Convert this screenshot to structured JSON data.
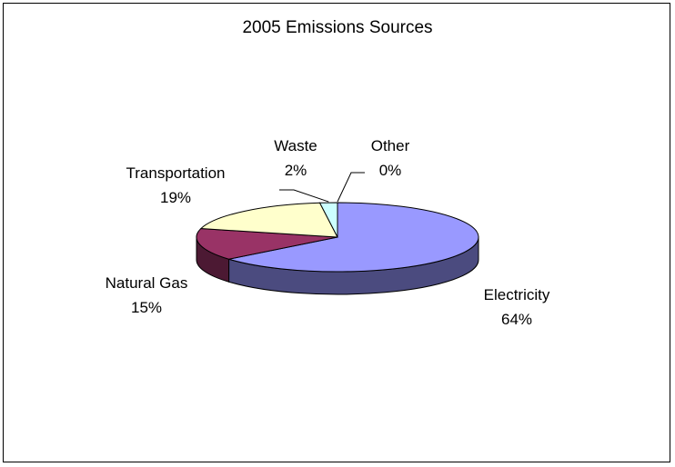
{
  "chart_data": {
    "type": "pie",
    "title": "2005 Emissions Sources",
    "three_d": true,
    "legend": "none",
    "slices": [
      {
        "name": "Electricity",
        "value": 64,
        "label": "64%",
        "color": "#9999FF",
        "side_color": "#4B4B7F"
      },
      {
        "name": "Natural Gas",
        "value": 15,
        "label": "15%",
        "color": "#993366",
        "side_color": "#4C1933"
      },
      {
        "name": "Transportation",
        "value": 19,
        "label": "19%",
        "color": "#FFFFCC",
        "side_color": "#7F7F66"
      },
      {
        "name": "Waste",
        "value": 2,
        "label": "2%",
        "color": "#CCFFFF",
        "side_color": "#667F7F"
      },
      {
        "name": "Other",
        "value": 0,
        "label": "0%",
        "color": "#660066",
        "side_color": "#330033"
      }
    ]
  }
}
